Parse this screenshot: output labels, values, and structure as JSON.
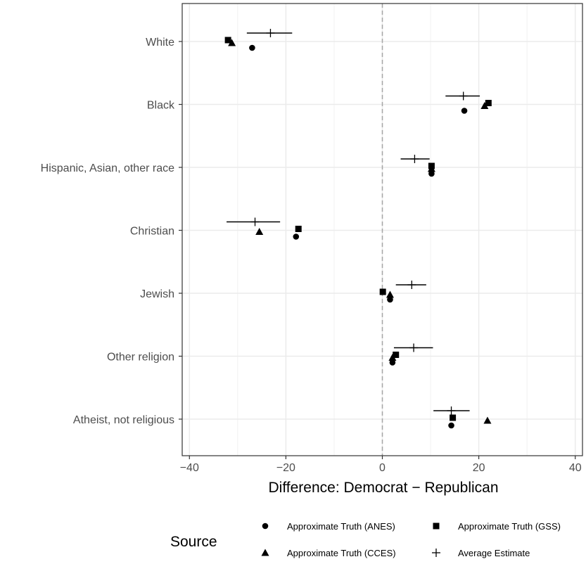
{
  "chart_data": {
    "type": "scatter",
    "xlabel": "Difference: Democrat − Republican",
    "xlim": [
      -41.5,
      41.5
    ],
    "xticks": [
      -40,
      -20,
      0,
      20,
      40
    ],
    "xtick_labels": [
      "−40",
      "−20",
      "0",
      "20",
      "40"
    ],
    "reference_line_x": 0,
    "grid": true,
    "categories": [
      "White",
      "Black",
      "Hispanic, Asian, other race",
      "Christian",
      "Jewish",
      "Other religion",
      "Atheist, not religious"
    ],
    "series": [
      {
        "name": "Approximate Truth (ANES)",
        "marker": "circle",
        "values": [
          -27,
          17,
          10.2,
          -17.9,
          1.6,
          2.1,
          14.3
        ]
      },
      {
        "name": "Approximate Truth (GSS)",
        "marker": "square",
        "values": [
          -32,
          22,
          10.2,
          -17.4,
          0.1,
          2.8,
          14.6
        ]
      },
      {
        "name": "Approximate Truth (CCES)",
        "marker": "triangle",
        "values": [
          -31.2,
          21.2,
          10.2,
          -25.5,
          1.6,
          2.1,
          21.8
        ]
      },
      {
        "name": "Average Estimate",
        "marker": "plus",
        "values": [
          -23.2,
          16.8,
          6.7,
          -26.4,
          6.1,
          6.5,
          14.3
        ],
        "low": [
          -28.1,
          13.1,
          3.8,
          -32.3,
          2.8,
          2.4,
          10.6
        ],
        "high": [
          -18.7,
          20.2,
          9.8,
          -21.2,
          9.1,
          10.5,
          18.1
        ]
      }
    ],
    "legend": {
      "title": "Source",
      "position": "bottom",
      "entries": [
        "Approximate Truth (ANES)",
        "Approximate Truth (GSS)",
        "Approximate Truth (CCES)",
        "Average Estimate"
      ]
    }
  }
}
